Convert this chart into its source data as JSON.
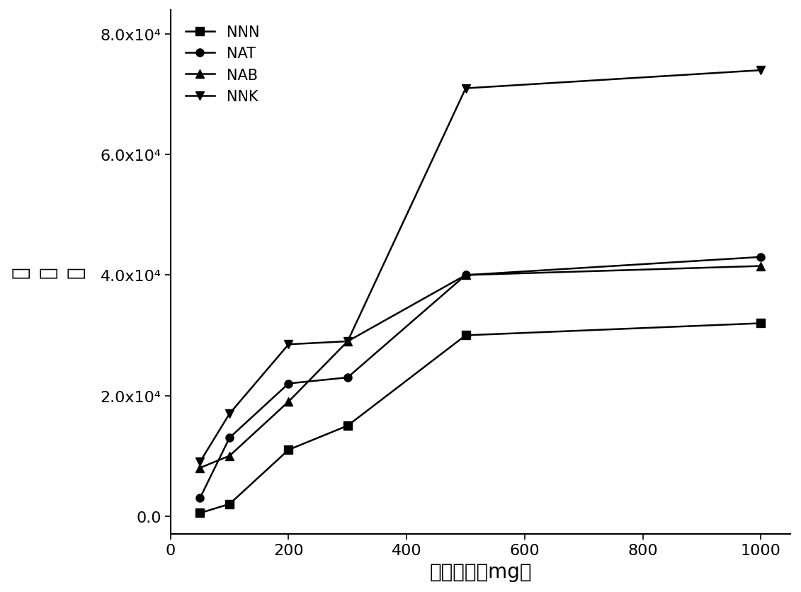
{
  "x": [
    50,
    100,
    200,
    300,
    500,
    1000
  ],
  "NNN": [
    500,
    2000,
    11000,
    15000,
    30000,
    32000
  ],
  "NAT": [
    3000,
    13000,
    22000,
    23000,
    40000,
    43000
  ],
  "NAB": [
    8000,
    10000,
    19000,
    29000,
    40000,
    41500
  ],
  "NNK": [
    9000,
    17000,
    28500,
    29000,
    71000,
    74000
  ],
  "xlabel": "填料质量（mg）",
  "ylabel_chars": [
    "峰",
    "面",
    "积"
  ],
  "ylim": [
    -3000,
    84000
  ],
  "xlim": [
    0,
    1050
  ],
  "xticks": [
    0,
    200,
    400,
    600,
    800,
    1000
  ],
  "yticks": [
    0,
    20000,
    40000,
    60000,
    80000
  ],
  "ytick_labels": [
    "0.0",
    "2.0x10⁴",
    "4.0x10⁴",
    "6.0x10⁴",
    "8.0x10⁴"
  ],
  "line_color": "#000000",
  "marker_NNN": "s",
  "marker_NAT": "o",
  "marker_NAB": "^",
  "marker_NNK": "v",
  "linewidth": 1.8,
  "markersize": 8,
  "xlabel_fontsize": 20,
  "ylabel_fontsize": 20,
  "tick_fontsize": 16,
  "legend_fontsize": 15
}
